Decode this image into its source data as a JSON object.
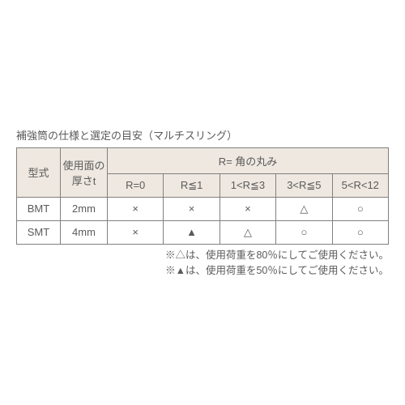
{
  "caption": "補強筒の仕様と選定の目安（マルチスリング）",
  "header": {
    "model": "型式",
    "thicknessLine1": "使用面の",
    "thicknessLine2": "厚さt",
    "rGroup": "R= 角の丸み",
    "r0": "R=0",
    "r1": "R≦1",
    "r2": "1<R≦3",
    "r3": "3<R≦5",
    "r4": "5<R<12"
  },
  "rows": [
    {
      "model": "BMT",
      "thick": "2mm",
      "c0": "×",
      "c1": "×",
      "c2": "×",
      "c3": "△",
      "c4": "○"
    },
    {
      "model": "SMT",
      "thick": "4mm",
      "c0": "×",
      "c1": "▲",
      "c2": "△",
      "c3": "○",
      "c4": "○"
    }
  ],
  "note1": "※△は、使用荷重を80％にしてご使用ください。",
  "note2": "※▲は、使用荷重を50％にしてご使用ください。",
  "colors": {
    "headerBg": "#efe8e0",
    "border": "#808080",
    "text": "#5a5a5a",
    "background": "#ffffff"
  }
}
